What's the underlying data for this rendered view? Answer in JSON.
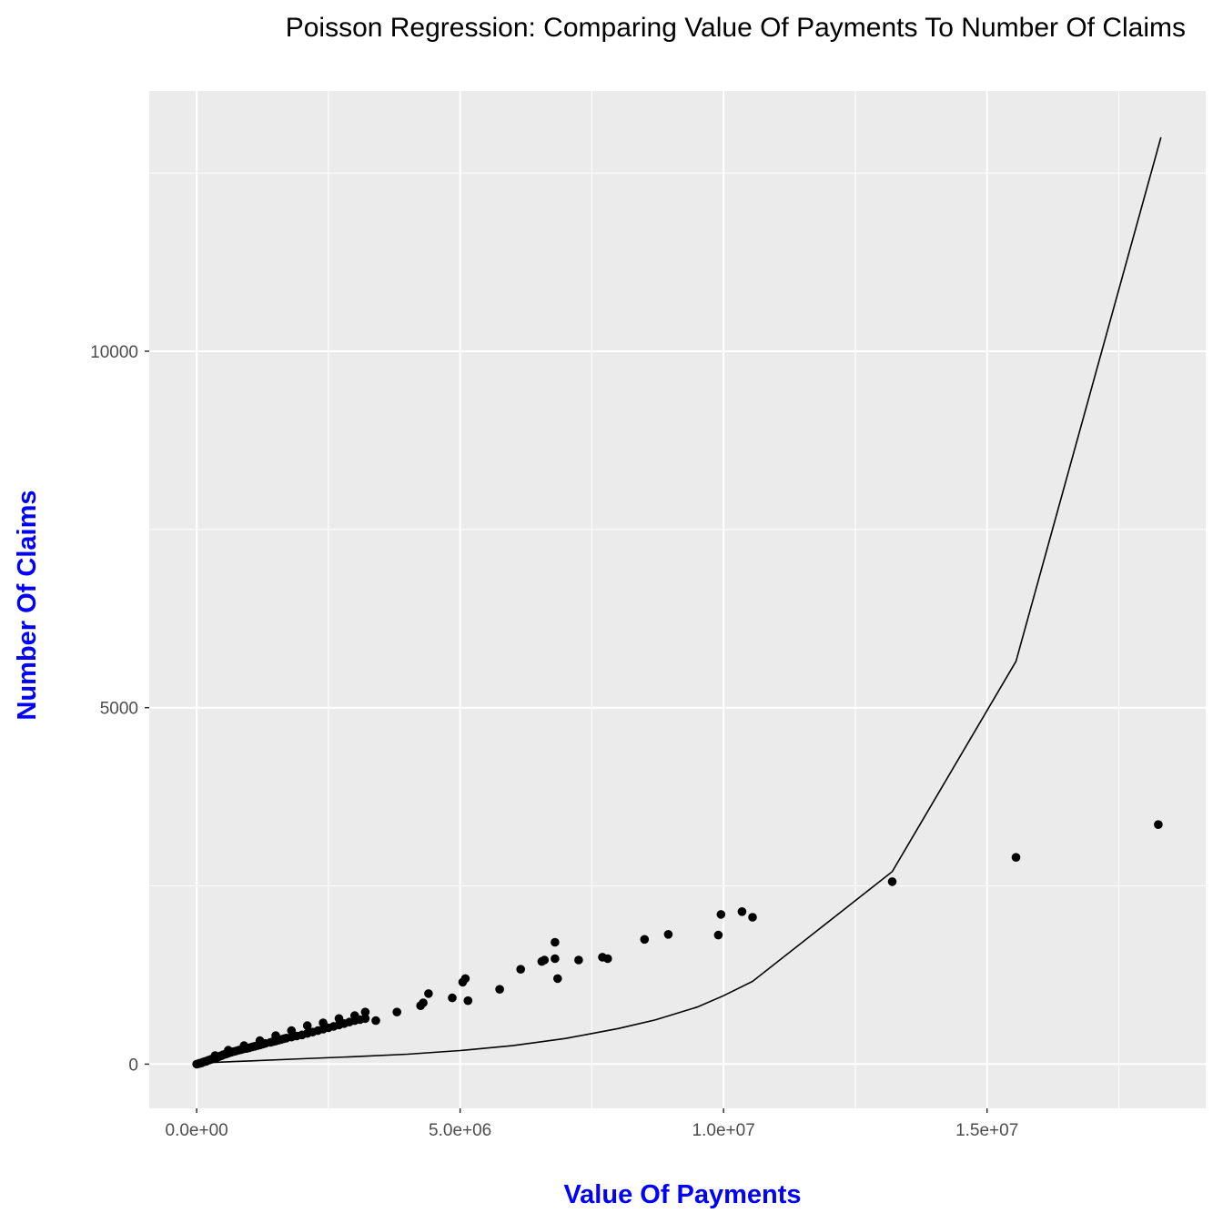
{
  "chart_data": {
    "type": "scatter",
    "title": "Poisson Regression: Comparing Value Of Payments To Number Of Claims",
    "xlabel": "Value Of Payments",
    "ylabel": "Number Of Claims",
    "xlim": [
      -900000,
      19150000
    ],
    "ylim": [
      -620,
      13650
    ],
    "x_ticks": [
      {
        "value": 0,
        "label": "0.0e+00"
      },
      {
        "value": 5000000,
        "label": "5.0e+06"
      },
      {
        "value": 10000000,
        "label": "1.0e+07"
      },
      {
        "value": 15000000,
        "label": "1.5e+07"
      }
    ],
    "x_minor_ticks": [
      2500000,
      7500000,
      12500000,
      17500000
    ],
    "y_ticks": [
      {
        "value": 0,
        "label": "0"
      },
      {
        "value": 5000,
        "label": "5000"
      },
      {
        "value": 10000,
        "label": "10000"
      }
    ],
    "y_minor_ticks": [
      2500,
      7500,
      12500
    ],
    "grid": true,
    "colors": {
      "panel": "#ebebeb",
      "grid": "#ffffff",
      "points": "#000000",
      "line": "#000000",
      "axis_title": "#0000ff",
      "tick_label": "#4d4d4d"
    },
    "series": [
      {
        "kind": "points",
        "points": [
          [
            0,
            0
          ],
          [
            30000,
            5
          ],
          [
            50000,
            10
          ],
          [
            70000,
            15
          ],
          [
            100000,
            20
          ],
          [
            120000,
            28
          ],
          [
            150000,
            35
          ],
          [
            180000,
            40
          ],
          [
            200000,
            48
          ],
          [
            230000,
            55
          ],
          [
            250000,
            60
          ],
          [
            280000,
            68
          ],
          [
            300000,
            75
          ],
          [
            330000,
            80
          ],
          [
            350000,
            88
          ],
          [
            380000,
            92
          ],
          [
            400000,
            100
          ],
          [
            430000,
            108
          ],
          [
            450000,
            115
          ],
          [
            480000,
            120
          ],
          [
            500000,
            130
          ],
          [
            530000,
            138
          ],
          [
            550000,
            140
          ],
          [
            580000,
            150
          ],
          [
            600000,
            155
          ],
          [
            650000,
            165
          ],
          [
            700000,
            175
          ],
          [
            750000,
            185
          ],
          [
            800000,
            195
          ],
          [
            850000,
            205
          ],
          [
            900000,
            215
          ],
          [
            950000,
            220
          ],
          [
            1000000,
            230
          ],
          [
            1050000,
            240
          ],
          [
            1100000,
            250
          ],
          [
            1150000,
            260
          ],
          [
            1200000,
            270
          ],
          [
            1250000,
            280
          ],
          [
            1300000,
            290
          ],
          [
            1400000,
            305
          ],
          [
            1450000,
            315
          ],
          [
            1500000,
            325
          ],
          [
            1550000,
            335
          ],
          [
            1600000,
            345
          ],
          [
            1650000,
            355
          ],
          [
            1700000,
            365
          ],
          [
            1800000,
            380
          ],
          [
            1900000,
            395
          ],
          [
            2000000,
            410
          ],
          [
            2100000,
            430
          ],
          [
            2200000,
            450
          ],
          [
            2300000,
            470
          ],
          [
            2400000,
            490
          ],
          [
            2500000,
            510
          ],
          [
            2600000,
            530
          ],
          [
            2700000,
            550
          ],
          [
            2800000,
            570
          ],
          [
            2900000,
            590
          ],
          [
            3000000,
            610
          ],
          [
            3100000,
            625
          ],
          [
            3200000,
            640
          ],
          [
            3400000,
            610
          ],
          [
            350000,
            120
          ],
          [
            600000,
            195
          ],
          [
            900000,
            260
          ],
          [
            1200000,
            330
          ],
          [
            1500000,
            400
          ],
          [
            1800000,
            470
          ],
          [
            2100000,
            540
          ],
          [
            2400000,
            580
          ],
          [
            2700000,
            640
          ],
          [
            3000000,
            680
          ],
          [
            3200000,
            730
          ],
          [
            3800000,
            730
          ],
          [
            4250000,
            820
          ],
          [
            4300000,
            860
          ],
          [
            4400000,
            990
          ],
          [
            4850000,
            930
          ],
          [
            5050000,
            1150
          ],
          [
            5100000,
            1200
          ],
          [
            5150000,
            890
          ],
          [
            5750000,
            1050
          ],
          [
            6150000,
            1330
          ],
          [
            6550000,
            1440
          ],
          [
            6600000,
            1460
          ],
          [
            6800000,
            1480
          ],
          [
            6800000,
            1710
          ],
          [
            6850000,
            1200
          ],
          [
            7250000,
            1460
          ],
          [
            7700000,
            1500
          ],
          [
            7800000,
            1480
          ],
          [
            8500000,
            1750
          ],
          [
            8950000,
            1820
          ],
          [
            9900000,
            1810
          ],
          [
            9950000,
            2100
          ],
          [
            10350000,
            2140
          ],
          [
            10550000,
            2060
          ],
          [
            13200000,
            2560
          ],
          [
            15550000,
            2900
          ],
          [
            18250000,
            3360
          ]
        ]
      },
      {
        "kind": "line",
        "points": [
          [
            0,
            15
          ],
          [
            1000000,
            45
          ],
          [
            2000000,
            75
          ],
          [
            3000000,
            105
          ],
          [
            4000000,
            140
          ],
          [
            5000000,
            190
          ],
          [
            6000000,
            260
          ],
          [
            7000000,
            360
          ],
          [
            8000000,
            500
          ],
          [
            8700000,
            620
          ],
          [
            9500000,
            800
          ],
          [
            10000000,
            960
          ],
          [
            10550000,
            1160
          ],
          [
            13200000,
            2700
          ],
          [
            15550000,
            5650
          ],
          [
            18300000,
            13000
          ]
        ]
      }
    ]
  }
}
